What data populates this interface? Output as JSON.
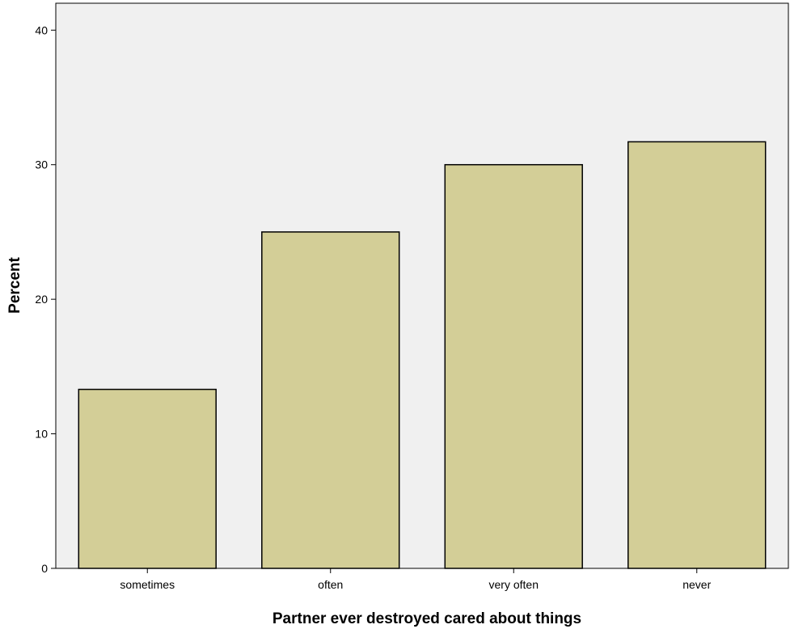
{
  "chart_data": {
    "type": "bar",
    "categories": [
      "sometimes",
      "often",
      "very often",
      "never"
    ],
    "values": [
      13.3,
      25.0,
      30.0,
      31.7
    ],
    "xlabel": "Partner ever destroyed cared about things",
    "ylabel": "Percent",
    "ylim": [
      0,
      42
    ],
    "yticks": [
      0,
      10,
      20,
      30,
      40
    ],
    "grid": false,
    "legend": "none"
  },
  "colors": {
    "plot_background": "#f0f0f0",
    "bar_fill": "#d3ce97",
    "bar_stroke": "#000000",
    "axis": "#000000"
  }
}
